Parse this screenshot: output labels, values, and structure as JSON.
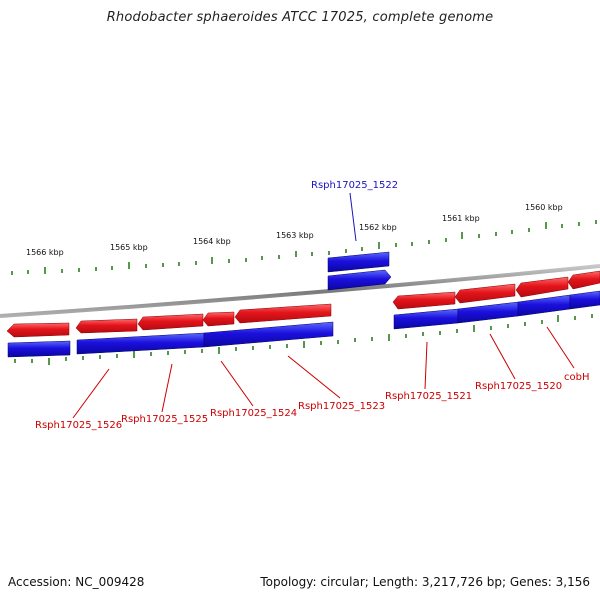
{
  "title": "Rhodobacter sphaeroides ATCC 17025, complete genome",
  "footer": {
    "accession": "Accession: NC_009428",
    "summary": "Topology: circular; Length: 3,217,726 bp; Genes: 3,156"
  },
  "colors": {
    "forward_gene": "#e0141b",
    "reverse_gene": "#1a12d8",
    "ticks": "#2b7d1e",
    "label_red": "#cc0000",
    "label_blue": "#1a12c0",
    "backbone": "#8a8a8a"
  },
  "kbp_labels": [
    "1566 kbp",
    "1565 kbp",
    "1564 kbp",
    "1563 kbp",
    "1562 kbp",
    "1561 kbp",
    "1560 kbp"
  ],
  "gene_labels": {
    "g1526": "Rsph17025_1526",
    "g1525": "Rsph17025_1525",
    "g1524": "Rsph17025_1524",
    "g1523": "Rsph17025_1523",
    "g1522": "Rsph17025_1522",
    "g1521": "Rsph17025_1521",
    "g1520": "Rsph17025_1520",
    "cobH": "cobH"
  }
}
